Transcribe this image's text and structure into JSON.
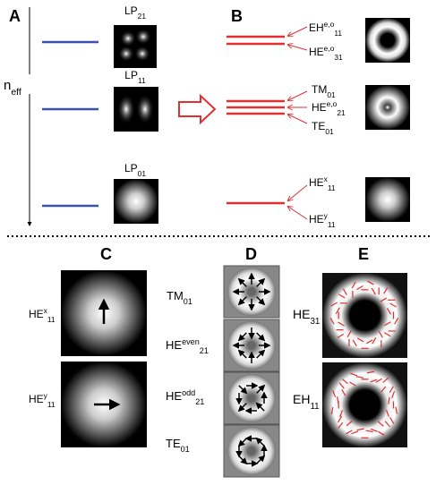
{
  "panels": {
    "a": "A",
    "b": "B",
    "c": "C",
    "d": "D",
    "e": "E"
  },
  "panel_a": {
    "axis_label": {
      "base": "n",
      "sub": "eff"
    },
    "modes": [
      {
        "base": "LP",
        "sub": "21"
      },
      {
        "base": "LP",
        "sub": "11"
      },
      {
        "base": "LP",
        "sub": "01"
      }
    ]
  },
  "panel_b": {
    "modes": [
      {
        "base": "EH",
        "sup": "e,o",
        "sub": "11"
      },
      {
        "base": "HE",
        "sup": "e,o",
        "sub": "31"
      },
      {
        "base": "TM",
        "sub": "01"
      },
      {
        "base": "HE",
        "sup": "e,o",
        "sub": "21"
      },
      {
        "base": "TE",
        "sub": "01"
      },
      {
        "base": "HE",
        "sup": "x",
        "sub": "11"
      },
      {
        "base": "HE",
        "sup": "y",
        "sub": "11"
      }
    ]
  },
  "panel_c": {
    "modes": [
      {
        "base": "HE",
        "sup": "x",
        "sub": "11"
      },
      {
        "base": "HE",
        "sup": "y",
        "sub": "11"
      }
    ]
  },
  "panel_d": {
    "modes": [
      {
        "base": "TM",
        "sub": "01"
      },
      {
        "base": "HE",
        "sup": "even",
        "sub": "21"
      },
      {
        "base": "HE",
        "sup": "odd",
        "sub": "21"
      },
      {
        "base": "TE",
        "sub": "01"
      }
    ]
  },
  "panel_e": {
    "modes": [
      {
        "base": "HE",
        "sub": "31"
      },
      {
        "base": "EH",
        "sub": "11"
      }
    ]
  }
}
